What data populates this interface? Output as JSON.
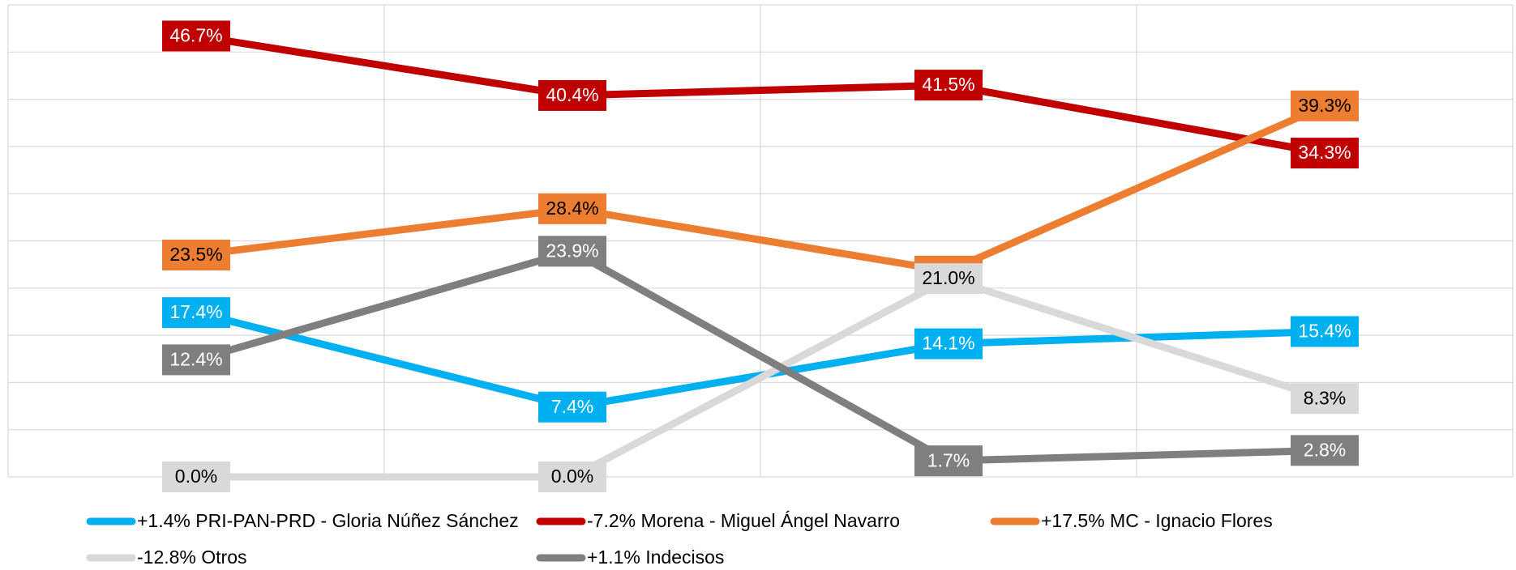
{
  "chart_data": {
    "type": "line",
    "categories": [
      null,
      null,
      null,
      null
    ],
    "ylim": [
      0,
      50
    ],
    "yticks": [
      0,
      5,
      10,
      15,
      20,
      25,
      30,
      35,
      40,
      45,
      50
    ],
    "grid": true,
    "legend": "bottom",
    "series": [
      {
        "name": "+1.4% PRI-PAN-PRD - Gloria Núñez Sánchez",
        "color": "#00b0f0",
        "values": [
          17.4,
          7.4,
          14.1,
          15.4
        ],
        "value_labels": [
          "17.4%",
          "7.4%",
          "14.1%",
          "15.4%"
        ]
      },
      {
        "name": "-7.2% Morena - Miguel Ángel Navarro",
        "color": "#c00000",
        "values": [
          46.7,
          40.4,
          41.5,
          34.3
        ],
        "value_labels": [
          "46.7%",
          "40.4%",
          "41.5%",
          "34.3%"
        ]
      },
      {
        "name": "+17.5% MC - Ignacio Flores",
        "color": "#ed7d31",
        "values": [
          23.5,
          28.4,
          21.8,
          39.3
        ],
        "value_labels": [
          "23.5%",
          "28.4%",
          "21.8%",
          "39.3%"
        ]
      },
      {
        "name": "-12.8% Otros",
        "color": "#d9d9d9",
        "values": [
          0.0,
          0.0,
          21.0,
          8.3
        ],
        "value_labels": [
          "0.0%",
          "0.0%",
          "21.0%",
          "8.3%"
        ]
      },
      {
        "name": "+1.1% Indecisos",
        "color": "#7f7f7f",
        "values": [
          12.4,
          23.9,
          1.7,
          2.8
        ],
        "value_labels": [
          "12.4%",
          "23.9%",
          "1.7%",
          "2.8%"
        ]
      }
    ]
  }
}
